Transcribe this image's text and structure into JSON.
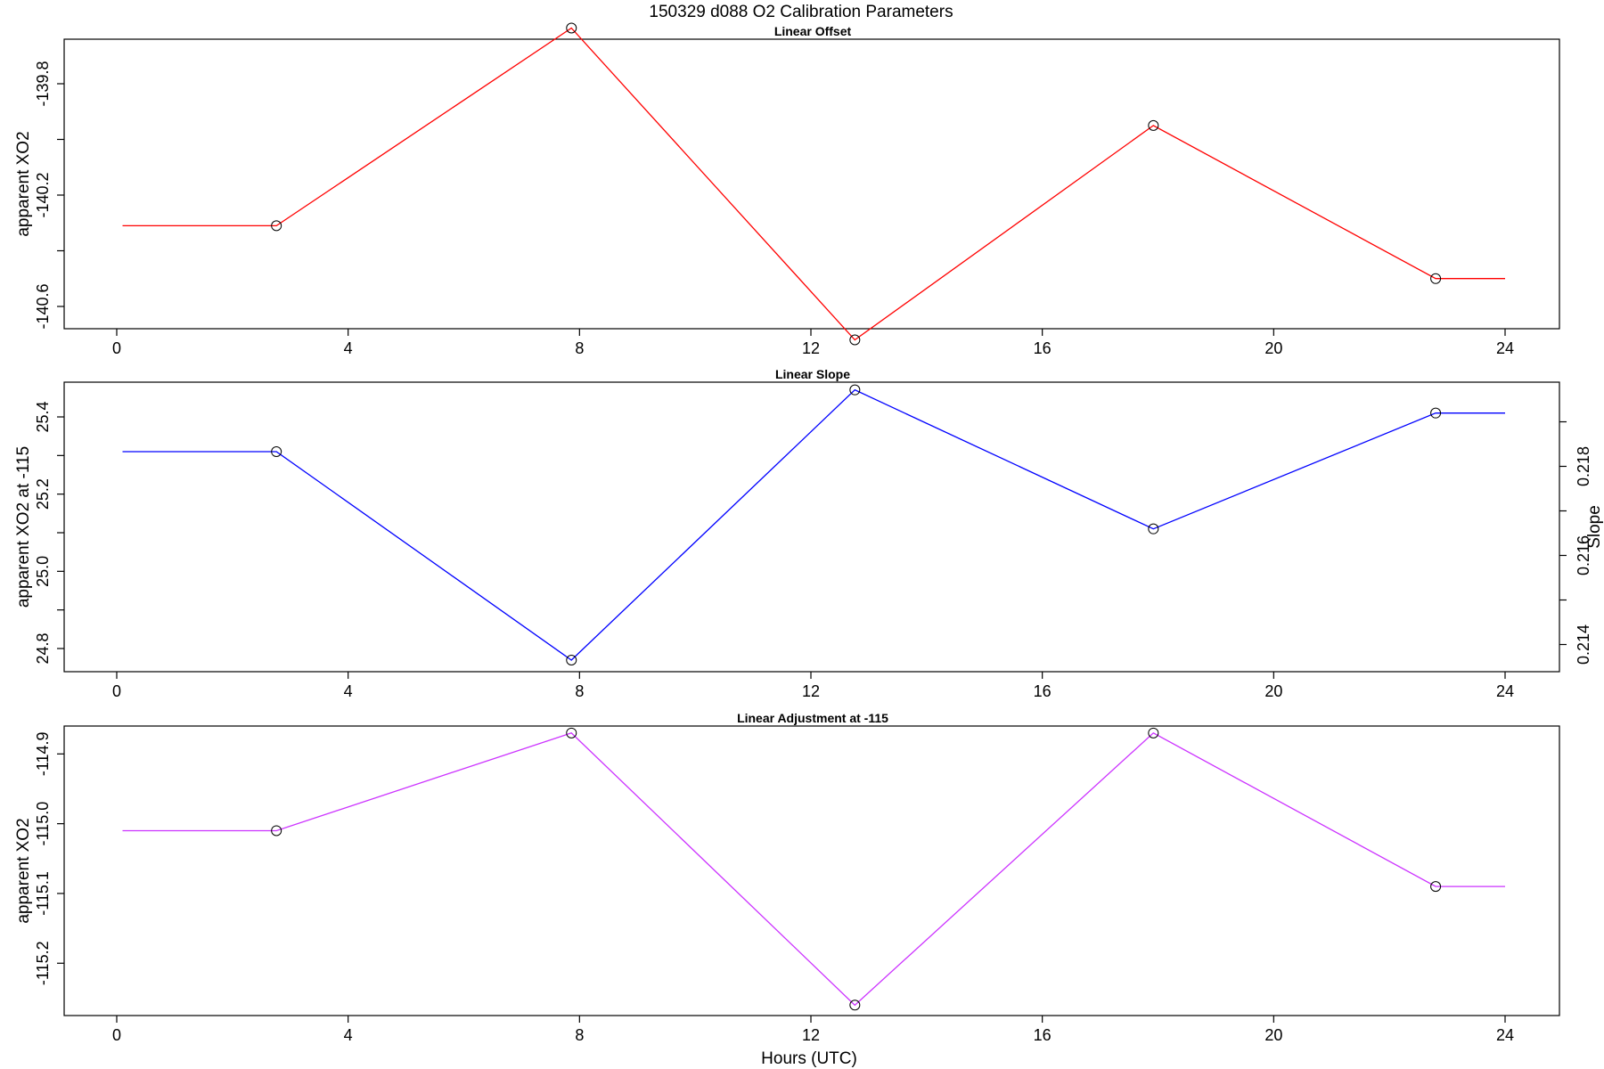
{
  "figure": {
    "title": "150329   d088   O2 Calibration Parameters",
    "xlabel": "Hours (UTC)"
  },
  "chart_data": [
    {
      "type": "line",
      "title": "Linear Offset",
      "xlabel": "",
      "ylabel": "apparent XO2",
      "xlim": [
        0,
        24
      ],
      "ylim": [
        -140.68,
        -139.64
      ],
      "x_ticks": [
        0,
        4,
        8,
        12,
        16,
        20,
        24
      ],
      "y_ticks": [
        -139.8,
        -140.0,
        -140.2,
        -140.4,
        -140.6
      ],
      "y_tick_labels": [
        "-139.8",
        "",
        "-140.2",
        "",
        "-140.6"
      ],
      "color": "#ff0000",
      "line_x": [
        0.1,
        2.76,
        7.86,
        12.76,
        17.92,
        22.8,
        24.0
      ],
      "line_y": [
        -140.31,
        -140.31,
        -139.6,
        -140.72,
        -139.95,
        -140.5,
        -140.5
      ],
      "points_x": [
        2.76,
        7.86,
        12.76,
        17.92,
        22.8
      ],
      "points_y": [
        -140.31,
        -139.6,
        -140.72,
        -139.95,
        -140.5
      ]
    },
    {
      "type": "line",
      "title": "Linear Slope",
      "xlabel": "",
      "ylabel": "apparent XO2 at -115",
      "ylabel_right": "Slope",
      "xlim": [
        0,
        24
      ],
      "ylim": [
        24.74,
        25.49
      ],
      "x_ticks": [
        0,
        4,
        8,
        12,
        16,
        20,
        24
      ],
      "y_ticks": [
        24.8,
        24.9,
        25.0,
        25.1,
        25.2,
        25.3,
        25.4
      ],
      "y_tick_labels": [
        "24.8",
        "",
        "25.0",
        "",
        "25.2",
        "",
        "25.4"
      ],
      "y2lim": [
        0.21339,
        0.21989
      ],
      "y2_ticks": [
        0.214,
        0.215,
        0.216,
        0.217,
        0.218,
        0.219
      ],
      "y2_tick_labels": [
        "0.214",
        "",
        "0.216",
        "",
        "0.218",
        ""
      ],
      "color": "#0000ff",
      "line_x": [
        0.1,
        2.76,
        7.86,
        12.76,
        17.92,
        22.8,
        24.0
      ],
      "line_y": [
        25.31,
        25.31,
        24.77,
        25.47,
        25.11,
        25.41,
        25.41
      ],
      "points_x": [
        2.76,
        7.86,
        12.76,
        17.92,
        22.8
      ],
      "points_y": [
        25.31,
        24.77,
        25.47,
        25.11,
        25.41
      ]
    },
    {
      "type": "line",
      "title": "Linear Adjustment at -115",
      "xlabel": "Hours (UTC)",
      "ylabel": "apparent XO2",
      "xlim": [
        0,
        24
      ],
      "ylim": [
        -115.275,
        -114.86
      ],
      "x_ticks": [
        0,
        4,
        8,
        12,
        16,
        20,
        24
      ],
      "y_ticks": [
        -114.9,
        -115.0,
        -115.1,
        -115.2
      ],
      "y_tick_labels": [
        "-114.9",
        "-115.0",
        "-115.1",
        "-115.2"
      ],
      "color": "#cc33ff",
      "line_x": [
        0.1,
        2.76,
        7.86,
        12.76,
        17.92,
        22.8,
        24.0
      ],
      "line_y": [
        -115.01,
        -115.01,
        -114.87,
        -115.26,
        -114.87,
        -115.09,
        -115.09
      ],
      "points_x": [
        2.76,
        7.86,
        12.76,
        17.92,
        22.8
      ],
      "points_y": [
        -115.01,
        -114.87,
        -115.26,
        -114.87,
        -115.09
      ]
    }
  ]
}
